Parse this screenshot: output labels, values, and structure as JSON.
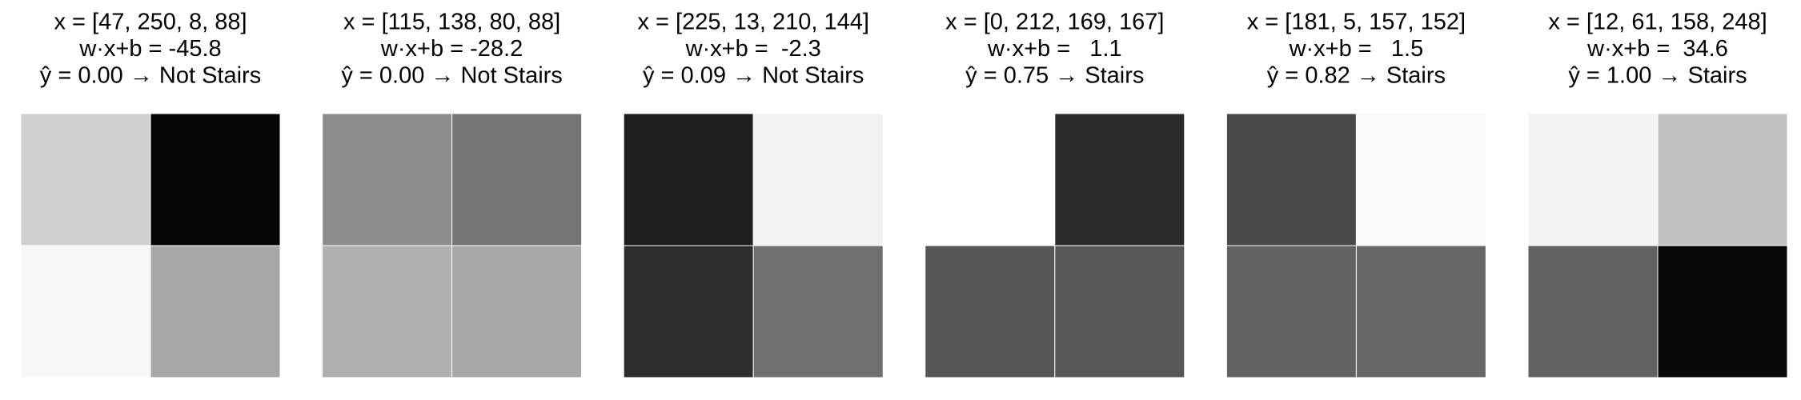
{
  "panels": [
    {
      "x_label": "x = [47, 250, 8, 88]",
      "score_label": "w·x+b = -45.8",
      "prediction_label": "ŷ = 0.00 → Not Stairs",
      "x": [
        47,
        250,
        8,
        88
      ]
    },
    {
      "x_label": "x = [115, 138, 80, 88]",
      "score_label": "w·x+b = -28.2",
      "prediction_label": "ŷ = 0.00 → Not Stairs",
      "x": [
        115,
        138,
        80,
        88
      ]
    },
    {
      "x_label": "x = [225, 13, 210, 144]",
      "score_label": "w·x+b =  -2.3",
      "prediction_label": "ŷ = 0.09 → Not Stairs",
      "x": [
        225,
        13,
        210,
        144
      ]
    },
    {
      "x_label": "x = [0, 212, 169, 167]",
      "score_label": "w·x+b =   1.1",
      "prediction_label": "ŷ = 0.75 → Stairs",
      "x": [
        0,
        212,
        169,
        167
      ]
    },
    {
      "x_label": "x = [181, 5, 157, 152]",
      "score_label": "w·x+b =   1.5",
      "prediction_label": "ŷ = 0.82 → Stairs",
      "x": [
        181,
        5,
        157,
        152
      ]
    },
    {
      "x_label": "x = [12, 61, 158, 248]",
      "score_label": "w·x+b =  34.6",
      "prediction_label": "ŷ = 1.00 → Stairs",
      "x": [
        12,
        61,
        158,
        248
      ]
    }
  ]
}
